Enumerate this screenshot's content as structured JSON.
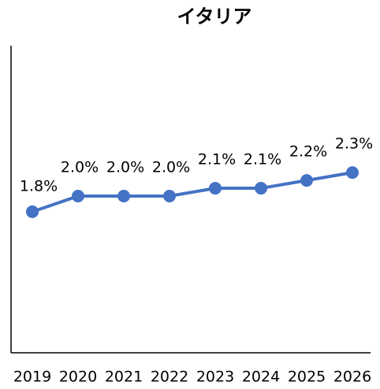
{
  "chart_data": {
    "type": "line",
    "title": "イタリア",
    "categories": [
      "2019",
      "2020",
      "2021",
      "2022",
      "2023",
      "2024",
      "2025",
      "2026"
    ],
    "values": [
      1.8,
      2.0,
      2.0,
      2.0,
      2.1,
      2.1,
      2.2,
      2.3
    ],
    "value_labels": [
      "1.8%",
      "2.0%",
      "2.0%",
      "2.0%",
      "2.1%",
      "2.1%",
      "2.2%",
      "2.3%"
    ],
    "color": "#4472c4",
    "ylim": [
      0,
      4
    ]
  }
}
